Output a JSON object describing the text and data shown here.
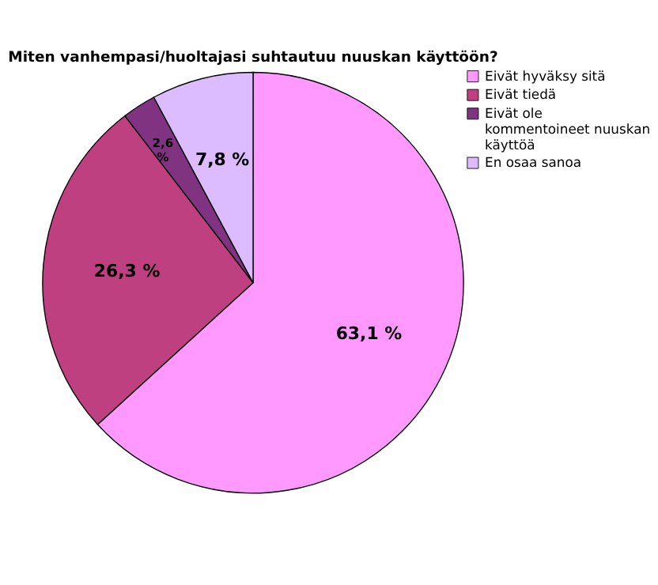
{
  "chart_data": {
    "type": "pie",
    "title": "Miten vanhempasi/huoltajasi suhtautuu nuuskan käyttöön?",
    "categories": [
      "Eivät hyväksy sitä",
      "Eivät tiedä",
      "Eivät ole kommentoineet nuuskan käyttöä",
      "En osaa sanoa"
    ],
    "values": [
      63.1,
      26.3,
      2.6,
      7.8
    ],
    "value_labels": [
      "63,1 %",
      "26,3 %",
      "2,6 %",
      "7,8 %"
    ],
    "colors": [
      "#ff99ff",
      "#bf4080",
      "#803380",
      "#ddbbff"
    ],
    "legend": "top right"
  }
}
